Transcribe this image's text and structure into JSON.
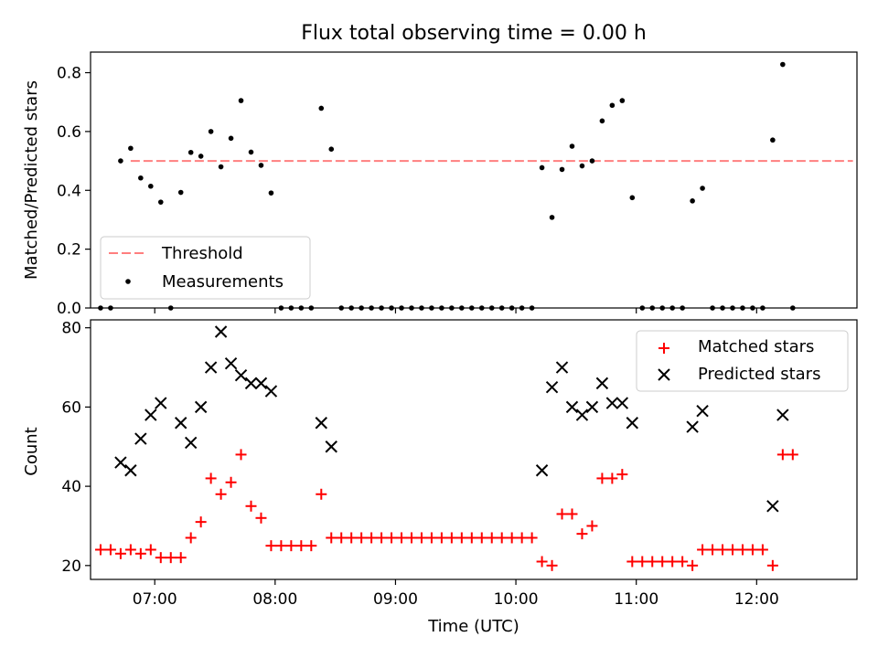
{
  "chart_data": [
    {
      "type": "scatter",
      "title": "Flux total observing time = 0.00 h",
      "xlabel": "",
      "ylabel": "Matched/Predicted stars",
      "ylim": [
        0,
        0.87
      ],
      "yticks": [
        0.0,
        0.2,
        0.4,
        0.6,
        0.8
      ],
      "ytick_labels": [
        "0.0",
        "0.2",
        "0.4",
        "0.6",
        "0.8"
      ],
      "legend_position": "lower-left",
      "threshold": {
        "name": "Threshold",
        "value": 0.5,
        "x_range": [
          "06:48",
          "12:48"
        ],
        "color": "#ff7f7f",
        "style": "dashed"
      },
      "series": [
        {
          "name": "Measurements",
          "color": "#000000",
          "marker": "dot",
          "points": [
            [
              "06:33",
              0
            ],
            [
              "06:38",
              0
            ],
            [
              "06:43",
              0.5
            ],
            [
              "06:48",
              0.543
            ],
            [
              "06:53",
              0.442
            ],
            [
              "06:58",
              0.414
            ],
            [
              "07:03",
              0.36
            ],
            [
              "07:08",
              0
            ],
            [
              "07:13",
              0.393
            ],
            [
              "07:18",
              0.529
            ],
            [
              "07:23",
              0.516
            ],
            [
              "07:28",
              0.6
            ],
            [
              "07:33",
              0.48
            ],
            [
              "07:38",
              0.577
            ],
            [
              "07:43",
              0.705
            ],
            [
              "07:48",
              0.53
            ],
            [
              "07:53",
              0.485
            ],
            [
              "07:58",
              0.391
            ],
            [
              "08:03",
              0
            ],
            [
              "08:08",
              0
            ],
            [
              "08:13",
              0
            ],
            [
              "08:18",
              0
            ],
            [
              "08:23",
              0.679
            ],
            [
              "08:28",
              0.54
            ],
            [
              "08:33",
              0
            ],
            [
              "08:38",
              0
            ],
            [
              "08:43",
              0
            ],
            [
              "08:48",
              0
            ],
            [
              "08:53",
              0
            ],
            [
              "08:58",
              0
            ],
            [
              "09:03",
              0
            ],
            [
              "09:08",
              0
            ],
            [
              "09:13",
              0
            ],
            [
              "09:18",
              0
            ],
            [
              "09:23",
              0
            ],
            [
              "09:28",
              0
            ],
            [
              "09:33",
              0
            ],
            [
              "09:38",
              0
            ],
            [
              "09:43",
              0
            ],
            [
              "09:48",
              0
            ],
            [
              "09:53",
              0
            ],
            [
              "09:58",
              0
            ],
            [
              "10:03",
              0
            ],
            [
              "10:08",
              0
            ],
            [
              "10:13",
              0.477
            ],
            [
              "10:18",
              0.308
            ],
            [
              "10:23",
              0.471
            ],
            [
              "10:28",
              0.55
            ],
            [
              "10:33",
              0.483
            ],
            [
              "10:38",
              0.5
            ],
            [
              "10:43",
              0.636
            ],
            [
              "10:48",
              0.689
            ],
            [
              "10:53",
              0.705
            ],
            [
              "10:58",
              0.375
            ],
            [
              "11:03",
              0
            ],
            [
              "11:08",
              0
            ],
            [
              "11:13",
              0
            ],
            [
              "11:18",
              0
            ],
            [
              "11:23",
              0
            ],
            [
              "11:28",
              0.364
            ],
            [
              "11:33",
              0.407
            ],
            [
              "11:38",
              0
            ],
            [
              "11:43",
              0
            ],
            [
              "11:48",
              0
            ],
            [
              "11:53",
              0
            ],
            [
              "11:58",
              0
            ],
            [
              "12:03",
              0
            ],
            [
              "12:08",
              0.571
            ],
            [
              "12:13",
              0.828
            ],
            [
              "12:18",
              0
            ]
          ]
        }
      ]
    },
    {
      "type": "scatter",
      "title": "",
      "xlabel": "Time (UTC)",
      "ylabel": "Count",
      "xlim": [
        "06:28",
        "12:50"
      ],
      "ylim": [
        16.5,
        82
      ],
      "yticks": [
        20,
        40,
        60,
        80
      ],
      "ytick_labels": [
        "20",
        "40",
        "60",
        "80"
      ],
      "xticks": [
        "07:00",
        "08:00",
        "09:00",
        "10:00",
        "11:00",
        "12:00"
      ],
      "legend_position": "upper-right",
      "series": [
        {
          "name": "Matched stars",
          "color": "#ff0000",
          "marker": "plus",
          "points": [
            [
              "06:33",
              24
            ],
            [
              "06:38",
              24
            ],
            [
              "06:43",
              23
            ],
            [
              "06:48",
              24
            ],
            [
              "06:53",
              23
            ],
            [
              "06:58",
              24
            ],
            [
              "07:03",
              22
            ],
            [
              "07:08",
              22
            ],
            [
              "07:13",
              22
            ],
            [
              "07:18",
              27
            ],
            [
              "07:23",
              31
            ],
            [
              "07:28",
              42
            ],
            [
              "07:33",
              38
            ],
            [
              "07:38",
              41
            ],
            [
              "07:43",
              48
            ],
            [
              "07:48",
              35
            ],
            [
              "07:53",
              32
            ],
            [
              "07:58",
              25
            ],
            [
              "08:03",
              25
            ],
            [
              "08:08",
              25
            ],
            [
              "08:13",
              25
            ],
            [
              "08:18",
              25
            ],
            [
              "08:23",
              38
            ],
            [
              "08:28",
              27
            ],
            [
              "08:33",
              27
            ],
            [
              "08:38",
              27
            ],
            [
              "08:43",
              27
            ],
            [
              "08:48",
              27
            ],
            [
              "08:53",
              27
            ],
            [
              "08:58",
              27
            ],
            [
              "09:03",
              27
            ],
            [
              "09:08",
              27
            ],
            [
              "09:13",
              27
            ],
            [
              "09:18",
              27
            ],
            [
              "09:23",
              27
            ],
            [
              "09:28",
              27
            ],
            [
              "09:33",
              27
            ],
            [
              "09:38",
              27
            ],
            [
              "09:43",
              27
            ],
            [
              "09:48",
              27
            ],
            [
              "09:53",
              27
            ],
            [
              "09:58",
              27
            ],
            [
              "10:03",
              27
            ],
            [
              "10:08",
              27
            ],
            [
              "10:13",
              21
            ],
            [
              "10:18",
              20
            ],
            [
              "10:23",
              33
            ],
            [
              "10:28",
              33
            ],
            [
              "10:33",
              28
            ],
            [
              "10:38",
              30
            ],
            [
              "10:43",
              42
            ],
            [
              "10:48",
              42
            ],
            [
              "10:53",
              43
            ],
            [
              "10:58",
              21
            ],
            [
              "11:03",
              21
            ],
            [
              "11:08",
              21
            ],
            [
              "11:13",
              21
            ],
            [
              "11:18",
              21
            ],
            [
              "11:23",
              21
            ],
            [
              "11:28",
              20
            ],
            [
              "11:33",
              24
            ],
            [
              "11:38",
              24
            ],
            [
              "11:43",
              24
            ],
            [
              "11:48",
              24
            ],
            [
              "11:53",
              24
            ],
            [
              "11:58",
              24
            ],
            [
              "12:03",
              24
            ],
            [
              "12:08",
              20
            ],
            [
              "12:13",
              48
            ],
            [
              "12:18",
              48
            ]
          ]
        },
        {
          "name": "Predicted stars",
          "color": "#000000",
          "marker": "x",
          "points": [
            [
              "06:43",
              46
            ],
            [
              "06:48",
              44
            ],
            [
              "06:53",
              52
            ],
            [
              "06:58",
              58
            ],
            [
              "07:03",
              61
            ],
            [
              "07:13",
              56
            ],
            [
              "07:18",
              51
            ],
            [
              "07:23",
              60
            ],
            [
              "07:28",
              70
            ],
            [
              "07:33",
              79
            ],
            [
              "07:38",
              71
            ],
            [
              "07:43",
              68
            ],
            [
              "07:48",
              66
            ],
            [
              "07:53",
              66
            ],
            [
              "07:58",
              64
            ],
            [
              "08:23",
              56
            ],
            [
              "08:28",
              50
            ],
            [
              "10:13",
              44
            ],
            [
              "10:18",
              65
            ],
            [
              "10:23",
              70
            ],
            [
              "10:28",
              60
            ],
            [
              "10:33",
              58
            ],
            [
              "10:38",
              60
            ],
            [
              "10:43",
              66
            ],
            [
              "10:48",
              61
            ],
            [
              "10:53",
              61
            ],
            [
              "10:58",
              56
            ],
            [
              "11:28",
              55
            ],
            [
              "11:33",
              59
            ],
            [
              "12:08",
              35
            ],
            [
              "12:13",
              58
            ]
          ]
        }
      ]
    }
  ]
}
